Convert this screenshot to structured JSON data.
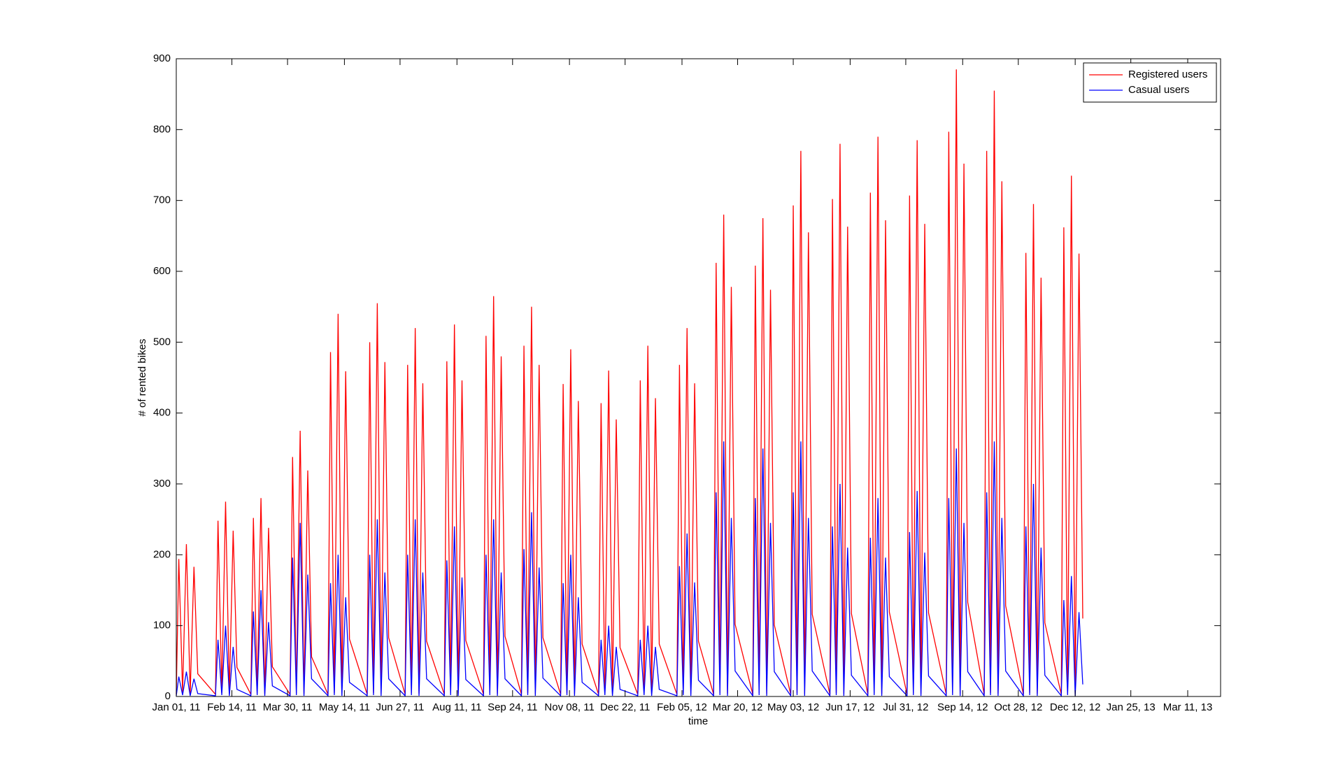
{
  "chart_data": {
    "type": "line",
    "x_label": "time",
    "y_label": "# of rented bikes",
    "xlim": [
      "2011-01-01",
      "2013-04-06"
    ],
    "xticks": [
      {
        "value": "2011-01-01",
        "label": "Jan 01, 11"
      },
      {
        "value": "2011-02-14",
        "label": "Feb 14, 11"
      },
      {
        "value": "2011-03-30",
        "label": "Mar 30, 11"
      },
      {
        "value": "2011-05-14",
        "label": "May 14, 11"
      },
      {
        "value": "2011-06-27",
        "label": "Jun 27, 11"
      },
      {
        "value": "2011-08-11",
        "label": "Aug 11, 11"
      },
      {
        "value": "2011-09-24",
        "label": "Sep 24, 11"
      },
      {
        "value": "2011-11-08",
        "label": "Nov 08, 11"
      },
      {
        "value": "2011-12-22",
        "label": "Dec 22, 11"
      },
      {
        "value": "2012-02-05",
        "label": "Feb 05, 12"
      },
      {
        "value": "2012-03-20",
        "label": "Mar 20, 12"
      },
      {
        "value": "2012-05-03",
        "label": "May 03, 12"
      },
      {
        "value": "2012-06-17",
        "label": "Jun 17, 12"
      },
      {
        "value": "2012-07-31",
        "label": "Jul 31, 12"
      },
      {
        "value": "2012-09-14",
        "label": "Sep 14, 12"
      },
      {
        "value": "2012-10-28",
        "label": "Oct 28, 12"
      },
      {
        "value": "2012-12-12",
        "label": "Dec 12, 12"
      },
      {
        "value": "2013-01-25",
        "label": "Jan 25, 13"
      },
      {
        "value": "2013-03-11",
        "label": "Mar 11, 13"
      }
    ],
    "ylim": [
      0,
      900
    ],
    "yticks": [
      0,
      100,
      200,
      300,
      400,
      500,
      600,
      700,
      800,
      900
    ],
    "legend": "upper right",
    "x": [
      "2011-01-01",
      "2011-01-03",
      "2011-01-06",
      "2011-01-09",
      "2011-01-12",
      "2011-01-15",
      "2011-01-18",
      "2011-02-01",
      "2011-02-03",
      "2011-02-06",
      "2011-02-09",
      "2011-02-12",
      "2011-02-15",
      "2011-02-18",
      "2011-03-01",
      "2011-03-03",
      "2011-03-06",
      "2011-03-09",
      "2011-03-12",
      "2011-03-15",
      "2011-03-18",
      "2011-04-01",
      "2011-04-03",
      "2011-04-06",
      "2011-04-09",
      "2011-04-12",
      "2011-04-15",
      "2011-04-18",
      "2011-05-01",
      "2011-05-03",
      "2011-05-06",
      "2011-05-09",
      "2011-05-12",
      "2011-05-15",
      "2011-05-18",
      "2011-06-01",
      "2011-06-03",
      "2011-06-06",
      "2011-06-09",
      "2011-06-12",
      "2011-06-15",
      "2011-06-18",
      "2011-07-01",
      "2011-07-03",
      "2011-07-06",
      "2011-07-09",
      "2011-07-12",
      "2011-07-15",
      "2011-07-18",
      "2011-08-01",
      "2011-08-03",
      "2011-08-06",
      "2011-08-09",
      "2011-08-12",
      "2011-08-15",
      "2011-08-18",
      "2011-09-01",
      "2011-09-03",
      "2011-09-06",
      "2011-09-09",
      "2011-09-12",
      "2011-09-15",
      "2011-09-18",
      "2011-10-01",
      "2011-10-03",
      "2011-10-06",
      "2011-10-09",
      "2011-10-12",
      "2011-10-15",
      "2011-10-18",
      "2011-11-01",
      "2011-11-03",
      "2011-11-06",
      "2011-11-09",
      "2011-11-12",
      "2011-11-15",
      "2011-11-18",
      "2011-12-01",
      "2011-12-03",
      "2011-12-06",
      "2011-12-09",
      "2011-12-12",
      "2011-12-15",
      "2011-12-18",
      "2012-01-01",
      "2012-01-03",
      "2012-01-06",
      "2012-01-09",
      "2012-01-12",
      "2012-01-15",
      "2012-01-18",
      "2012-02-01",
      "2012-02-03",
      "2012-02-06",
      "2012-02-09",
      "2012-02-12",
      "2012-02-15",
      "2012-02-18",
      "2012-03-01",
      "2012-03-03",
      "2012-03-06",
      "2012-03-09",
      "2012-03-12",
      "2012-03-15",
      "2012-03-18",
      "2012-04-01",
      "2012-04-03",
      "2012-04-06",
      "2012-04-09",
      "2012-04-12",
      "2012-04-15",
      "2012-04-18",
      "2012-05-01",
      "2012-05-03",
      "2012-05-06",
      "2012-05-09",
      "2012-05-12",
      "2012-05-15",
      "2012-05-18",
      "2012-06-01",
      "2012-06-03",
      "2012-06-06",
      "2012-06-09",
      "2012-06-12",
      "2012-06-15",
      "2012-06-18",
      "2012-07-01",
      "2012-07-03",
      "2012-07-06",
      "2012-07-09",
      "2012-07-12",
      "2012-07-15",
      "2012-07-18",
      "2012-08-01",
      "2012-08-03",
      "2012-08-06",
      "2012-08-09",
      "2012-08-12",
      "2012-08-15",
      "2012-08-18",
      "2012-09-01",
      "2012-09-03",
      "2012-09-06",
      "2012-09-09",
      "2012-09-12",
      "2012-09-15",
      "2012-09-18",
      "2012-10-01",
      "2012-10-03",
      "2012-10-06",
      "2012-10-09",
      "2012-10-12",
      "2012-10-15",
      "2012-10-18",
      "2012-11-01",
      "2012-11-03",
      "2012-11-06",
      "2012-11-09",
      "2012-11-12",
      "2012-11-15",
      "2012-11-18",
      "2012-12-01",
      "2012-12-03",
      "2012-12-06",
      "2012-12-09",
      "2012-12-12",
      "2012-12-15",
      "2012-12-18"
    ],
    "series": [
      {
        "name": "Registered users",
        "color": "#ff0000",
        "values": [
          3,
          194,
          5,
          215,
          4,
          183,
          32,
          3,
          248,
          5,
          275,
          4,
          234,
          41,
          3,
          252,
          5,
          280,
          4,
          238,
          42,
          3,
          338,
          5,
          375,
          4,
          319,
          56,
          3,
          486,
          5,
          540,
          4,
          459,
          81,
          3,
          500,
          5,
          555,
          4,
          472,
          83,
          3,
          468,
          5,
          520,
          4,
          442,
          78,
          3,
          473,
          5,
          525,
          4,
          446,
          79,
          3,
          509,
          5,
          565,
          4,
          480,
          85,
          3,
          495,
          5,
          550,
          4,
          468,
          83,
          3,
          441,
          5,
          490,
          4,
          417,
          74,
          3,
          414,
          5,
          460,
          4,
          391,
          69,
          3,
          446,
          5,
          495,
          4,
          421,
          74,
          3,
          468,
          5,
          520,
          4,
          442,
          78,
          3,
          612,
          5,
          680,
          4,
          578,
          102,
          3,
          608,
          5,
          675,
          4,
          574,
          101,
          3,
          693,
          5,
          770,
          4,
          655,
          116,
          3,
          702,
          5,
          780,
          4,
          663,
          117,
          3,
          711,
          5,
          790,
          4,
          672,
          119,
          3,
          707,
          5,
          785,
          4,
          667,
          118,
          3,
          797,
          5,
          885,
          4,
          752,
          133,
          3,
          770,
          5,
          855,
          4,
          727,
          128,
          3,
          626,
          5,
          695,
          4,
          591,
          104,
          3,
          662,
          5,
          735,
          4,
          625,
          110
        ]
      },
      {
        "name": "Casual users",
        "color": "#0000ff",
        "values": [
          1,
          28,
          2,
          35,
          1,
          25,
          4,
          1,
          80,
          2,
          100,
          1,
          70,
          10,
          1,
          120,
          2,
          150,
          1,
          105,
          15,
          1,
          196,
          2,
          245,
          1,
          172,
          25,
          1,
          160,
          2,
          200,
          1,
          140,
          20,
          1,
          200,
          2,
          250,
          1,
          175,
          25,
          1,
          200,
          2,
          250,
          1,
          175,
          25,
          1,
          192,
          2,
          240,
          1,
          168,
          24,
          1,
          200,
          2,
          250,
          1,
          175,
          25,
          1,
          208,
          2,
          260,
          1,
          182,
          26,
          1,
          160,
          2,
          200,
          1,
          140,
          20,
          1,
          80,
          2,
          100,
          1,
          70,
          10,
          1,
          80,
          2,
          100,
          1,
          70,
          10,
          1,
          184,
          2,
          230,
          1,
          161,
          23,
          1,
          288,
          2,
          360,
          1,
          252,
          36,
          1,
          280,
          2,
          350,
          1,
          245,
          35,
          1,
          288,
          2,
          360,
          1,
          252,
          36,
          1,
          240,
          2,
          300,
          1,
          210,
          30,
          1,
          224,
          2,
          280,
          1,
          196,
          28,
          1,
          232,
          2,
          290,
          1,
          203,
          29,
          1,
          280,
          2,
          350,
          1,
          245,
          35,
          1,
          288,
          2,
          360,
          1,
          252,
          36,
          1,
          240,
          2,
          300,
          1,
          210,
          30,
          1,
          136,
          2,
          170,
          1,
          119,
          17
        ]
      }
    ]
  }
}
